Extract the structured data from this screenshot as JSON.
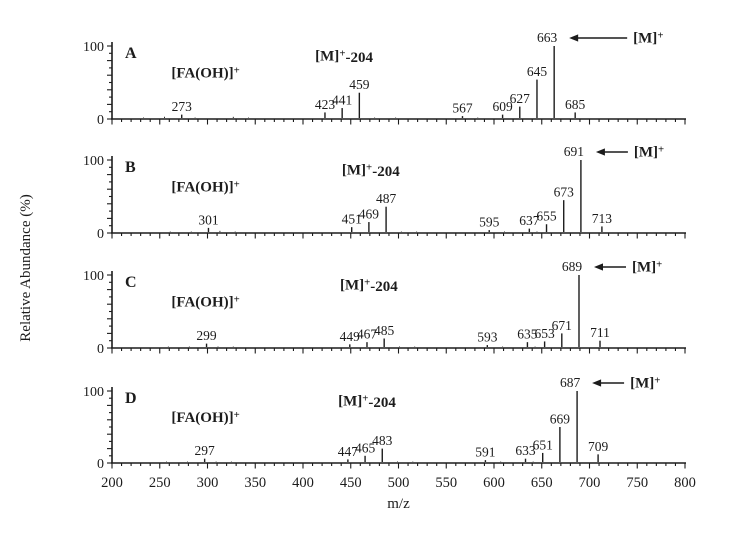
{
  "figure": {
    "background": "#ffffff",
    "ink_color": "#1c1c1c"
  },
  "chart_data": {
    "type": "bar",
    "chart_kind": "mass-spectra-stick-plots",
    "title": "",
    "xlabel": "m/z",
    "ylabel": "Relative Abundance (%)",
    "xlim": [
      200,
      800
    ],
    "ylim": [
      0,
      100
    ],
    "x_major_tick_step": 50,
    "x_minor_tick_step": 10,
    "x_tick_labels": [
      "200",
      "250",
      "300",
      "350",
      "400",
      "450",
      "500",
      "550",
      "600",
      "650",
      "700",
      "750",
      "800"
    ],
    "y_tick_labels": [
      "100",
      "0"
    ],
    "annotation_fragment_label": "[FA(OH)]^+",
    "annotation_neutral_loss_label": "[M]^+-204",
    "annotation_molecular_ion_label": "[M]^+",
    "panels": [
      {
        "label": "A",
        "molecular_ion_mz": 663,
        "peaks": [
          {
            "mz": 273,
            "intensity": 6,
            "label": "273"
          },
          {
            "mz": 423,
            "intensity": 9,
            "label": "423"
          },
          {
            "mz": 441,
            "intensity": 15,
            "label": "441"
          },
          {
            "mz": 459,
            "intensity": 36,
            "label": "459"
          },
          {
            "mz": 567,
            "intensity": 4,
            "label": "567"
          },
          {
            "mz": 609,
            "intensity": 6,
            "label": "609"
          },
          {
            "mz": 627,
            "intensity": 17,
            "label": "627"
          },
          {
            "mz": 645,
            "intensity": 54,
            "label": "645"
          },
          {
            "mz": 663,
            "intensity": 100,
            "label": "663"
          },
          {
            "mz": 685,
            "intensity": 9,
            "label": "685"
          }
        ],
        "minor_unlabeled_peaks": [
          {
            "mz": 233,
            "intensity": 2
          },
          {
            "mz": 255,
            "intensity": 3
          },
          {
            "mz": 287,
            "intensity": 2
          },
          {
            "mz": 327,
            "intensity": 3
          },
          {
            "mz": 343,
            "intensity": 2
          },
          {
            "mz": 475,
            "intensity": 2
          },
          {
            "mz": 497,
            "intensity": 2
          },
          {
            "mz": 583,
            "intensity": 2
          }
        ]
      },
      {
        "label": "B",
        "molecular_ion_mz": 691,
        "peaks": [
          {
            "mz": 301,
            "intensity": 7,
            "label": "301"
          },
          {
            "mz": 451,
            "intensity": 8,
            "label": "451"
          },
          {
            "mz": 469,
            "intensity": 15,
            "label": "469"
          },
          {
            "mz": 487,
            "intensity": 36,
            "label": "487"
          },
          {
            "mz": 595,
            "intensity": 4,
            "label": "595"
          },
          {
            "mz": 637,
            "intensity": 6,
            "label": "637"
          },
          {
            "mz": 655,
            "intensity": 12,
            "label": "655"
          },
          {
            "mz": 673,
            "intensity": 45,
            "label": "673"
          },
          {
            "mz": 691,
            "intensity": 100,
            "label": "691"
          },
          {
            "mz": 713,
            "intensity": 9,
            "label": "713"
          }
        ],
        "minor_unlabeled_peaks": [
          {
            "mz": 261,
            "intensity": 2
          },
          {
            "mz": 283,
            "intensity": 2
          },
          {
            "mz": 313,
            "intensity": 3
          },
          {
            "mz": 329,
            "intensity": 2
          },
          {
            "mz": 503,
            "intensity": 2
          },
          {
            "mz": 519,
            "intensity": 2
          },
          {
            "mz": 611,
            "intensity": 2
          },
          {
            "mz": 645,
            "intensity": 2
          }
        ]
      },
      {
        "label": "C",
        "molecular_ion_mz": 689,
        "peaks": [
          {
            "mz": 299,
            "intensity": 6,
            "label": "299"
          },
          {
            "mz": 449,
            "intensity": 5,
            "label": "449"
          },
          {
            "mz": 467,
            "intensity": 8,
            "label": "467"
          },
          {
            "mz": 485,
            "intensity": 13,
            "label": "485"
          },
          {
            "mz": 593,
            "intensity": 4,
            "label": "593"
          },
          {
            "mz": 635,
            "intensity": 8,
            "label": "635"
          },
          {
            "mz": 653,
            "intensity": 9,
            "label": "653"
          },
          {
            "mz": 671,
            "intensity": 20,
            "label": "671"
          },
          {
            "mz": 689,
            "intensity": 100,
            "label": "689"
          },
          {
            "mz": 711,
            "intensity": 10,
            "label": "711"
          }
        ],
        "minor_unlabeled_peaks": [
          {
            "mz": 259,
            "intensity": 2
          },
          {
            "mz": 281,
            "intensity": 2
          },
          {
            "mz": 311,
            "intensity": 2
          },
          {
            "mz": 327,
            "intensity": 2
          },
          {
            "mz": 501,
            "intensity": 2
          },
          {
            "mz": 517,
            "intensity": 2
          },
          {
            "mz": 609,
            "intensity": 2
          },
          {
            "mz": 643,
            "intensity": 2
          }
        ]
      },
      {
        "label": "D",
        "molecular_ion_mz": 687,
        "peaks": [
          {
            "mz": 297,
            "intensity": 6,
            "label": "297"
          },
          {
            "mz": 447,
            "intensity": 5,
            "label": "447"
          },
          {
            "mz": 465,
            "intensity": 10,
            "label": "465"
          },
          {
            "mz": 483,
            "intensity": 20,
            "label": "483"
          },
          {
            "mz": 591,
            "intensity": 4,
            "label": "591"
          },
          {
            "mz": 633,
            "intensity": 6,
            "label": "633"
          },
          {
            "mz": 651,
            "intensity": 14,
            "label": "651"
          },
          {
            "mz": 669,
            "intensity": 50,
            "label": "669"
          },
          {
            "mz": 687,
            "intensity": 100,
            "label": "687"
          },
          {
            "mz": 709,
            "intensity": 12,
            "label": "709"
          }
        ],
        "minor_unlabeled_peaks": [
          {
            "mz": 257,
            "intensity": 2
          },
          {
            "mz": 279,
            "intensity": 2
          },
          {
            "mz": 309,
            "intensity": 2
          },
          {
            "mz": 325,
            "intensity": 2
          },
          {
            "mz": 499,
            "intensity": 2
          },
          {
            "mz": 515,
            "intensity": 2
          },
          {
            "mz": 607,
            "intensity": 2
          },
          {
            "mz": 641,
            "intensity": 2
          }
        ]
      }
    ]
  }
}
